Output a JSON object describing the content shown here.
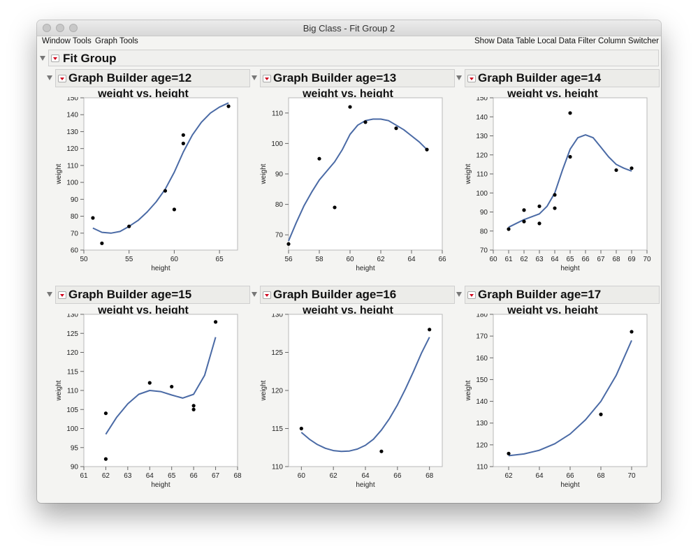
{
  "window": {
    "title": "Big Class - Fit Group 2"
  },
  "menu": {
    "left": [
      "Window Tools",
      "Graph Tools"
    ],
    "right": [
      "Show Data Table",
      "Local Data Filter",
      "Column Switcher"
    ]
  },
  "fit_group": {
    "title": "Fit Group"
  },
  "colors": {
    "line": "#4a6aa5",
    "point": "#000000",
    "frame": "#b8b8b8"
  },
  "chart_data": [
    {
      "type": "scatter",
      "header": "Graph Builder age=12",
      "title": "weight vs. height",
      "xlabel": "height",
      "ylabel": "weight",
      "xlim": [
        50,
        67
      ],
      "ylim": [
        60,
        150
      ],
      "xticks": [
        50,
        55,
        60,
        65
      ],
      "yticks": [
        60,
        70,
        80,
        90,
        100,
        110,
        120,
        130,
        140,
        150
      ],
      "points": [
        [
          51,
          79
        ],
        [
          52,
          64
        ],
        [
          55,
          74
        ],
        [
          59,
          95
        ],
        [
          60,
          84
        ],
        [
          61,
          128
        ],
        [
          61,
          123
        ],
        [
          66,
          145
        ]
      ],
      "fit": [
        [
          51,
          73
        ],
        [
          52,
          70.5
        ],
        [
          53,
          70
        ],
        [
          54,
          71
        ],
        [
          55,
          74
        ],
        [
          56,
          77.5
        ],
        [
          57,
          82.5
        ],
        [
          58,
          88.5
        ],
        [
          59,
          96
        ],
        [
          60,
          106
        ],
        [
          61,
          118
        ],
        [
          62,
          128
        ],
        [
          63,
          135.5
        ],
        [
          64,
          141
        ],
        [
          65,
          144.5
        ],
        [
          66,
          147
        ]
      ]
    },
    {
      "type": "scatter",
      "header": "Graph Builder age=13",
      "title": "weight vs. height",
      "xlabel": "height",
      "ylabel": "weight",
      "xlim": [
        56,
        66
      ],
      "ylim": [
        65,
        115
      ],
      "xticks": [
        56,
        58,
        60,
        62,
        64,
        66
      ],
      "yticks": [
        70,
        80,
        90,
        100,
        110
      ],
      "points": [
        [
          56,
          67
        ],
        [
          58,
          95
        ],
        [
          59,
          79
        ],
        [
          60,
          112
        ],
        [
          61,
          107
        ],
        [
          63,
          105
        ],
        [
          65,
          98
        ]
      ],
      "fit": [
        [
          56,
          68
        ],
        [
          56.5,
          74
        ],
        [
          57,
          79.5
        ],
        [
          57.5,
          84
        ],
        [
          58,
          88
        ],
        [
          58.5,
          91
        ],
        [
          59,
          94
        ],
        [
          59.5,
          98
        ],
        [
          60,
          103
        ],
        [
          60.5,
          106
        ],
        [
          61,
          107.5
        ],
        [
          61.5,
          108
        ],
        [
          62,
          108
        ],
        [
          62.5,
          107.5
        ],
        [
          63,
          106
        ],
        [
          63.5,
          104.5
        ],
        [
          64,
          102.5
        ],
        [
          64.5,
          100.5
        ],
        [
          65,
          98
        ]
      ]
    },
    {
      "type": "scatter",
      "header": "Graph Builder age=14",
      "title": "weight vs. height",
      "xlabel": "height",
      "ylabel": "weight",
      "xlim": [
        60,
        70
      ],
      "ylim": [
        70,
        150
      ],
      "xticks": [
        60,
        61,
        62,
        63,
        64,
        65,
        66,
        67,
        68,
        69,
        70
      ],
      "yticks": [
        70,
        80,
        90,
        100,
        110,
        120,
        130,
        140,
        150
      ],
      "points": [
        [
          61,
          81
        ],
        [
          62,
          85
        ],
        [
          62,
          91
        ],
        [
          63,
          93
        ],
        [
          63,
          84
        ],
        [
          64,
          92
        ],
        [
          64,
          99
        ],
        [
          65,
          142
        ],
        [
          65,
          119
        ],
        [
          68,
          112
        ],
        [
          69,
          113
        ]
      ],
      "fit": [
        [
          61,
          82
        ],
        [
          61.5,
          84
        ],
        [
          62,
          86
        ],
        [
          62.5,
          87.5
        ],
        [
          63,
          89
        ],
        [
          63.5,
          93
        ],
        [
          64,
          100
        ],
        [
          64.5,
          112
        ],
        [
          65,
          123
        ],
        [
          65.5,
          129
        ],
        [
          66,
          130.5
        ],
        [
          66.5,
          129
        ],
        [
          67,
          124
        ],
        [
          67.5,
          119
        ],
        [
          68,
          115
        ],
        [
          68.5,
          113
        ],
        [
          69,
          111.5
        ]
      ]
    },
    {
      "type": "scatter",
      "header": "Graph Builder age=15",
      "title": "weight vs. height",
      "xlabel": "height",
      "ylabel": "weight",
      "xlim": [
        61,
        68
      ],
      "ylim": [
        90,
        130
      ],
      "xticks": [
        61,
        62,
        63,
        64,
        65,
        66,
        67,
        68
      ],
      "yticks": [
        90,
        95,
        100,
        105,
        110,
        115,
        120,
        125,
        130
      ],
      "points": [
        [
          62,
          104
        ],
        [
          62,
          92
        ],
        [
          64,
          112
        ],
        [
          65,
          111
        ],
        [
          66,
          106
        ],
        [
          66,
          105
        ],
        [
          67,
          128
        ]
      ],
      "fit": [
        [
          62,
          98.5
        ],
        [
          62.5,
          103
        ],
        [
          63,
          106.5
        ],
        [
          63.5,
          109
        ],
        [
          64,
          110
        ],
        [
          64.5,
          109.7
        ],
        [
          65,
          108.8
        ],
        [
          65.5,
          108
        ],
        [
          66,
          109
        ],
        [
          66.5,
          114
        ],
        [
          67,
          124
        ]
      ]
    },
    {
      "type": "scatter",
      "header": "Graph Builder age=16",
      "title": "weight vs. height",
      "xlabel": "height",
      "ylabel": "weight",
      "xlim": [
        59.2,
        68.8
      ],
      "ylim": [
        110,
        130
      ],
      "xticks": [
        60,
        62,
        64,
        66,
        68
      ],
      "yticks": [
        110,
        115,
        120,
        125,
        130
      ],
      "points": [
        [
          60,
          115
        ],
        [
          65,
          112
        ],
        [
          68,
          128
        ]
      ],
      "fit": [
        [
          60,
          114.5
        ],
        [
          60.5,
          113.6
        ],
        [
          61,
          112.9
        ],
        [
          61.5,
          112.4
        ],
        [
          62,
          112.1
        ],
        [
          62.5,
          112
        ],
        [
          63,
          112.05
        ],
        [
          63.5,
          112.3
        ],
        [
          64,
          112.8
        ],
        [
          64.5,
          113.6
        ],
        [
          65,
          114.8
        ],
        [
          65.5,
          116.3
        ],
        [
          66,
          118.1
        ],
        [
          66.5,
          120.2
        ],
        [
          67,
          122.5
        ],
        [
          67.5,
          124.9
        ],
        [
          68,
          127
        ]
      ]
    },
    {
      "type": "scatter",
      "header": "Graph Builder age=17",
      "title": "weight vs. height",
      "xlabel": "height",
      "ylabel": "weight",
      "xlim": [
        61,
        71
      ],
      "ylim": [
        110,
        180
      ],
      "xticks": [
        62,
        64,
        66,
        68,
        70
      ],
      "yticks": [
        110,
        120,
        130,
        140,
        150,
        160,
        170,
        180
      ],
      "points": [
        [
          62,
          116
        ],
        [
          68,
          134
        ],
        [
          70,
          172
        ]
      ],
      "fit": [
        [
          62,
          115
        ],
        [
          63,
          115.8
        ],
        [
          64,
          117.5
        ],
        [
          65,
          120.5
        ],
        [
          66,
          125
        ],
        [
          67,
          131.5
        ],
        [
          68,
          140
        ],
        [
          69,
          152
        ],
        [
          70,
          168
        ]
      ]
    }
  ]
}
